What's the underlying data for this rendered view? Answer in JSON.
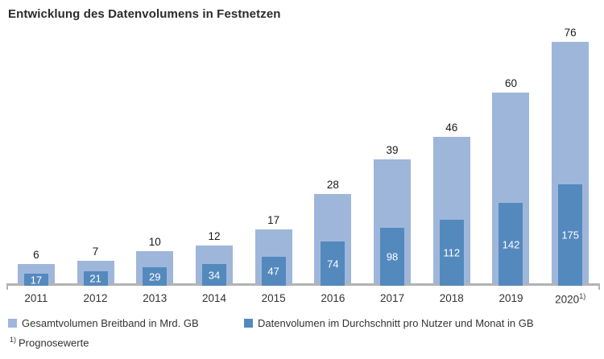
{
  "title": "Entwicklung des Datenvolumens in Festnetzen",
  "colors": {
    "total_bar": "#9fb6db",
    "user_bar": "#5489bd",
    "axis": "#b3b3b3",
    "total_value_label": "#1a1a1a",
    "user_value_label": "#ffffff"
  },
  "legend": {
    "items": [
      {
        "label": "Gesamtvolumen Breitband in Mrd. GB",
        "series": "total"
      },
      {
        "label": "Datenvolumen im Durchschnitt pro Nutzer und Monat in GB",
        "series": "user"
      }
    ],
    "position": "bottom"
  },
  "footnote": {
    "marker": "1)",
    "text": "Prognosewerte"
  },
  "chart_data": {
    "type": "bar",
    "title": "Entwicklung des Datenvolumens in Festnetzen",
    "categories": [
      "2011",
      "2012",
      "2013",
      "2014",
      "2015",
      "2016",
      "2017",
      "2018",
      "2019",
      "2020"
    ],
    "category_sups": [
      "",
      "",
      "",
      "",
      "",
      "",
      "",
      "",
      "",
      "1)"
    ],
    "series": [
      {
        "name": "Gesamtvolumen Breitband in Mrd. GB",
        "values": [
          6,
          7,
          10,
          12,
          17,
          28,
          39,
          46,
          60,
          76
        ],
        "value_label_position": "above-bar"
      },
      {
        "name": "Datenvolumen im Durchschnitt pro Nutzer und Monat in GB",
        "values": [
          17,
          21,
          29,
          34,
          47,
          74,
          98,
          112,
          142,
          175
        ],
        "value_label_position": "inside-bar-centered"
      }
    ],
    "xlabel": "",
    "ylabel": "",
    "grid": false,
    "axes_shown": "x-only",
    "legend_position": "bottom",
    "notes": "overlapped bars, two independent scales; 2020 values are forecasts (Prognosewerte)"
  }
}
